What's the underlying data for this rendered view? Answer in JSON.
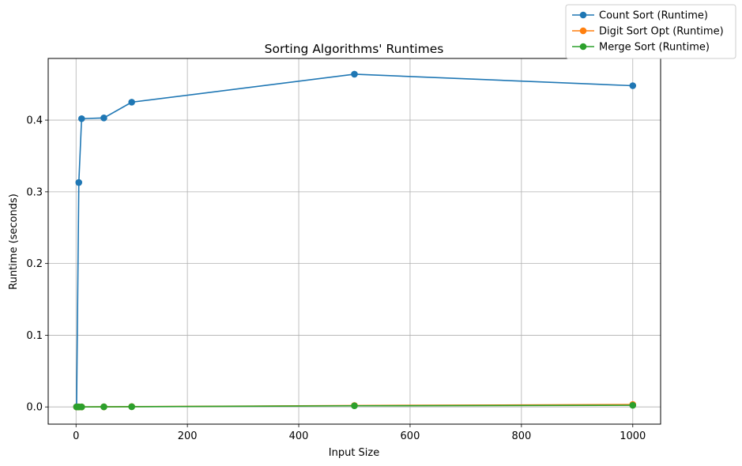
{
  "chart_data": {
    "type": "line",
    "title": "Sorting Algorithms' Runtimes",
    "xlabel": "Input Size",
    "ylabel": "Runtime (seconds)",
    "xlim": [
      -50,
      1050
    ],
    "ylim": [
      -0.024,
      0.486
    ],
    "xticks": [
      0,
      200,
      400,
      600,
      800,
      1000
    ],
    "yticks": [
      0.0,
      0.1,
      0.2,
      0.3,
      0.4
    ],
    "ytick_labels": [
      "0.0",
      "0.1",
      "0.2",
      "0.3",
      "0.4"
    ],
    "grid": true,
    "legend_position": "top-right",
    "x": [
      1,
      5,
      10,
      50,
      100,
      500,
      1000
    ],
    "series": [
      {
        "name": "Count Sort (Runtime)",
        "color": "#1f77b4",
        "marker": "circle",
        "values": [
          0.0003,
          0.313,
          0.402,
          0.403,
          0.425,
          0.464,
          0.448
        ]
      },
      {
        "name": "Digit Sort Opt (Runtime)",
        "color": "#ff7f0e",
        "marker": "circle",
        "values": [
          1e-05,
          2e-05,
          4e-05,
          0.0002,
          0.0004,
          0.002,
          0.0033
        ]
      },
      {
        "name": "Merge Sort (Runtime)",
        "color": "#2ca02c",
        "marker": "circle",
        "values": [
          1e-05,
          2e-05,
          3e-05,
          0.00015,
          0.0003,
          0.0016,
          0.0023
        ]
      }
    ]
  }
}
